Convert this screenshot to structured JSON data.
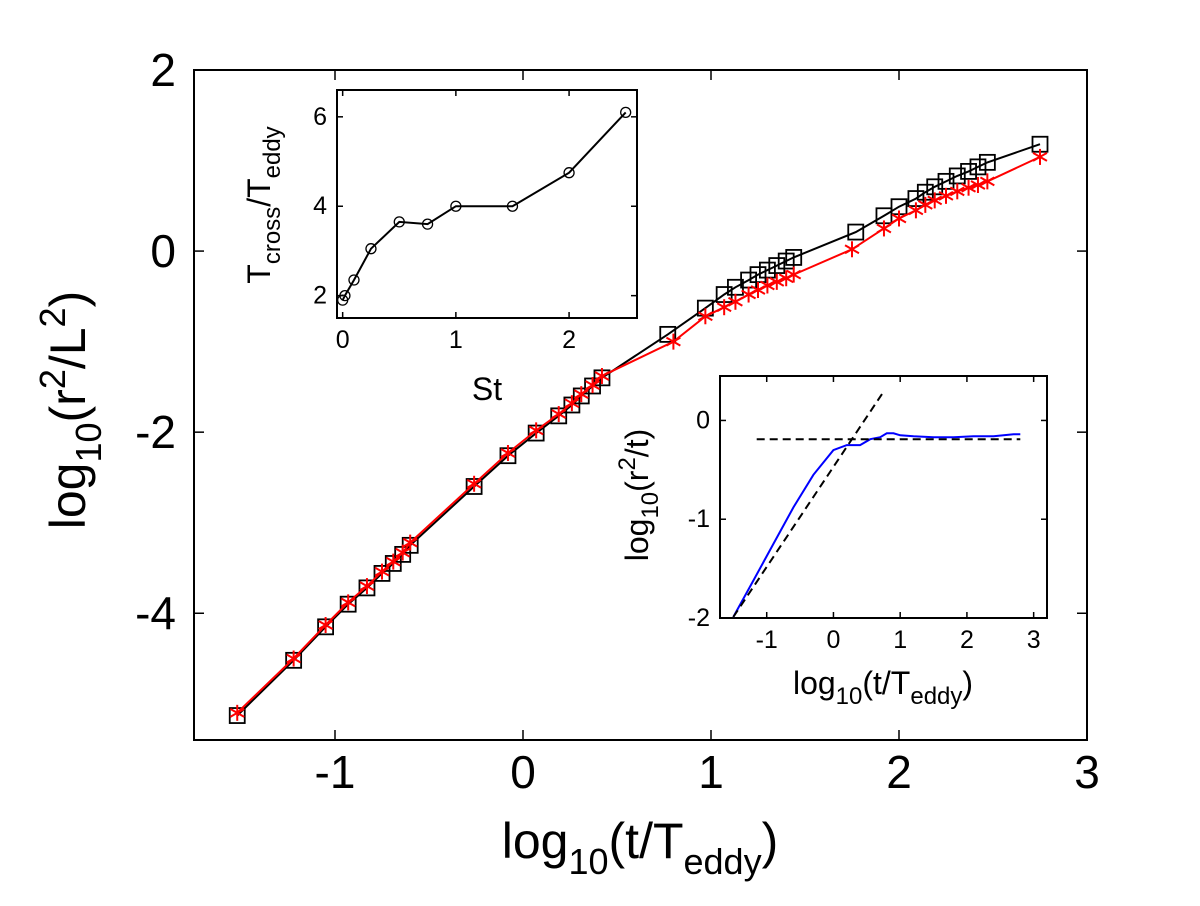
{
  "chart_data": [
    {
      "type": "line",
      "xlabel": {
        "main": "log",
        "sub": "10",
        "rest": "(t/T",
        "sub2": "eddy",
        "end": ")"
      },
      "ylabel": {
        "main": "log",
        "sub": "10",
        "rest": "(r",
        "sup": "2",
        "rest2": "/L",
        "sup2": "2",
        "end": ")"
      },
      "xlim": [
        -1.75,
        3.0
      ],
      "ylim": [
        -5.4,
        2.0
      ],
      "xticks": [
        -1,
        0,
        1,
        2,
        3
      ],
      "xtick_labels": [
        "-1",
        "0",
        "1",
        "2",
        "3"
      ],
      "yticks": [
        -4,
        -2,
        0,
        2
      ],
      "ytick_labels": [
        "-4",
        "-2",
        "0",
        "2"
      ],
      "grid": false,
      "series": [
        {
          "marker": "square",
          "color": "#000000",
          "x": [
            -1.52,
            -1.22,
            -1.05,
            -0.93,
            -0.83,
            -0.75,
            -0.69,
            -0.64,
            -0.6,
            -0.26,
            -0.08,
            0.07,
            0.19,
            0.26,
            0.31,
            0.37,
            0.42,
            0.77,
            0.97,
            1.07,
            1.13,
            1.2,
            1.25,
            1.3,
            1.35,
            1.4,
            1.44,
            1.77,
            1.92,
            2.0,
            2.09,
            2.14,
            2.19,
            2.25,
            2.31,
            2.37,
            2.42,
            2.47,
            2.75
          ],
          "y": [
            -5.13,
            -4.52,
            -4.15,
            -3.9,
            -3.72,
            -3.56,
            -3.45,
            -3.35,
            -3.25,
            -2.6,
            -2.26,
            -2.01,
            -1.82,
            -1.7,
            -1.6,
            -1.49,
            -1.4,
            -0.92,
            -0.63,
            -0.48,
            -0.4,
            -0.32,
            -0.26,
            -0.21,
            -0.16,
            -0.11,
            -0.07,
            0.21,
            0.39,
            0.49,
            0.58,
            0.65,
            0.71,
            0.77,
            0.83,
            0.88,
            0.93,
            0.98,
            1.18
          ]
        },
        {
          "marker": "asterisk",
          "color": "#ff0000",
          "x": [
            -1.52,
            -1.22,
            -1.05,
            -0.93,
            -0.83,
            -0.75,
            -0.69,
            -0.64,
            -0.6,
            -0.26,
            -0.08,
            0.07,
            0.19,
            0.26,
            0.31,
            0.37,
            0.42,
            0.8,
            0.97,
            1.07,
            1.13,
            1.2,
            1.25,
            1.3,
            1.35,
            1.4,
            1.44,
            1.75,
            1.92,
            2.0,
            2.09,
            2.14,
            2.19,
            2.25,
            2.31,
            2.37,
            2.42,
            2.47,
            2.75
          ],
          "y": [
            -5.1,
            -4.5,
            -4.13,
            -3.88,
            -3.7,
            -3.54,
            -3.43,
            -3.33,
            -3.22,
            -2.57,
            -2.23,
            -1.98,
            -1.8,
            -1.68,
            -1.58,
            -1.48,
            -1.38,
            -1.0,
            -0.72,
            -0.62,
            -0.56,
            -0.48,
            -0.43,
            -0.38,
            -0.34,
            -0.3,
            -0.26,
            0.02,
            0.25,
            0.36,
            0.45,
            0.51,
            0.56,
            0.61,
            0.66,
            0.7,
            0.73,
            0.77,
            1.04
          ]
        }
      ]
    },
    {
      "type": "line",
      "xlabel": "St",
      "ylabel": {
        "t1": "T",
        "s1": "cross",
        "t2": "/T",
        "s2": "eddy"
      },
      "xlim": [
        -0.05,
        2.6
      ],
      "ylim": [
        1.5,
        6.6
      ],
      "xticks": [
        0,
        1,
        2
      ],
      "xtick_labels": [
        "0",
        "1",
        "2"
      ],
      "yticks": [
        2,
        4,
        6
      ],
      "ytick_labels": [
        "2",
        "4",
        "6"
      ],
      "series": [
        {
          "marker": "circle",
          "color": "#000000",
          "x": [
            0.0,
            0.02,
            0.1,
            0.25,
            0.5,
            0.75,
            1.0,
            1.5,
            2.0,
            2.5
          ],
          "y": [
            1.9,
            2.0,
            2.35,
            3.05,
            3.65,
            3.6,
            4.0,
            4.0,
            4.75,
            6.1
          ]
        }
      ]
    },
    {
      "type": "line",
      "xlabel": {
        "main": "log",
        "sub": "10",
        "rest": "(t/T",
        "sub2": "eddy",
        "end": ")"
      },
      "ylabel": {
        "main": "log",
        "sub": "10",
        "rest": "(r",
        "sup": "2",
        "rest2": "/t)",
        "end": ""
      },
      "xlim": [
        -1.7,
        3.2
      ],
      "ylim": [
        -2.0,
        0.45
      ],
      "xticks": [
        -1,
        0,
        1,
        2,
        3
      ],
      "xtick_labels": [
        "-1",
        "0",
        "1",
        "2",
        "3"
      ],
      "yticks": [
        -2,
        -1,
        0
      ],
      "ytick_labels": [
        "-2",
        "-1",
        "0"
      ],
      "series": [
        {
          "color": "#0000ff",
          "x": [
            -1.5,
            -1.2,
            -0.9,
            -0.6,
            -0.3,
            0.0,
            0.2,
            0.4,
            0.55,
            0.7,
            0.8,
            0.9,
            1.0,
            1.2,
            1.5,
            1.8,
            2.1,
            2.4,
            2.7,
            2.8
          ],
          "y": [
            -1.99,
            -1.62,
            -1.25,
            -0.88,
            -0.55,
            -0.3,
            -0.25,
            -0.25,
            -0.19,
            -0.17,
            -0.13,
            -0.13,
            -0.15,
            -0.16,
            -0.17,
            -0.17,
            -0.16,
            -0.16,
            -0.14,
            -0.14
          ]
        },
        {
          "color": "#000000",
          "dash": true,
          "x": [
            -1.5,
            0.75
          ],
          "y": [
            -1.99,
            0.29
          ]
        },
        {
          "color": "#000000",
          "dash": true,
          "x": [
            -1.15,
            2.8
          ],
          "y": [
            -0.19,
            -0.19
          ]
        }
      ]
    }
  ]
}
